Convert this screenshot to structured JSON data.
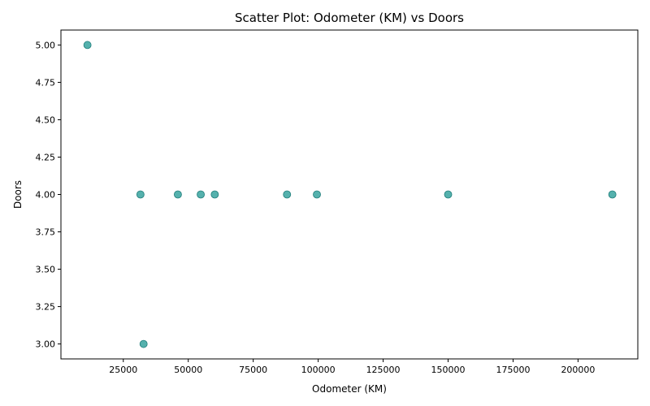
{
  "chart_data": {
    "type": "scatter",
    "title": "Scatter Plot: Odometer (KM) vs Doors",
    "xlabel": "Odometer (KM)",
    "ylabel": "Doors",
    "xlim": [
      1000,
      223000
    ],
    "ylim": [
      2.9,
      5.1
    ],
    "xticks": [
      25000,
      50000,
      75000,
      100000,
      125000,
      150000,
      175000,
      200000
    ],
    "yticks": [
      3.0,
      3.25,
      3.5,
      3.75,
      4.0,
      4.25,
      4.5,
      4.75,
      5.0
    ],
    "xtick_labels": [
      "25000",
      "50000",
      "75000",
      "100000",
      "125000",
      "150000",
      "175000",
      "200000"
    ],
    "ytick_labels": [
      "3.00",
      "3.25",
      "3.50",
      "3.75",
      "4.00",
      "4.25",
      "4.50",
      "4.75",
      "5.00"
    ],
    "grid": false,
    "point_color": "#2a9d99",
    "points": [
      {
        "x": 11200,
        "y": 5
      },
      {
        "x": 31600,
        "y": 4
      },
      {
        "x": 32800,
        "y": 3
      },
      {
        "x": 46000,
        "y": 4
      },
      {
        "x": 54800,
        "y": 4
      },
      {
        "x": 60200,
        "y": 4
      },
      {
        "x": 88000,
        "y": 4
      },
      {
        "x": 99500,
        "y": 4
      },
      {
        "x": 150000,
        "y": 4
      },
      {
        "x": 213200,
        "y": 4
      }
    ]
  }
}
